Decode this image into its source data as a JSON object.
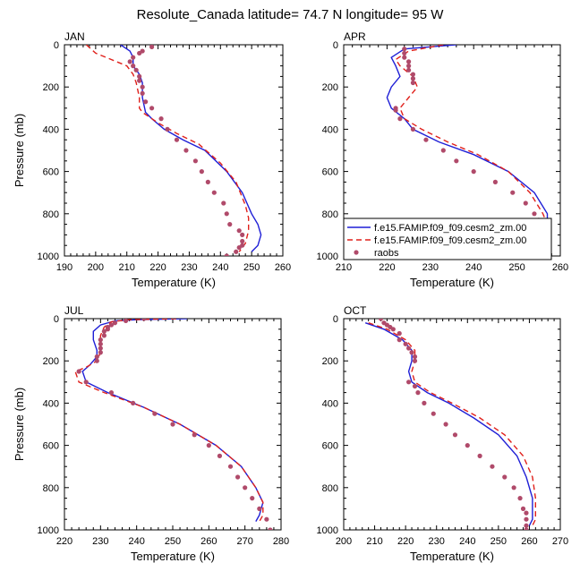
{
  "title": "Resolute_Canada  latitude= 74.7 N longitude= 95 W",
  "colors": {
    "model1": "#1f1fd6",
    "model2": "#e0201b",
    "raobs": "#b04a6a"
  },
  "chart_data": [
    {
      "type": "line",
      "panel_label": "JAN",
      "xlabel": "Temperature (K)",
      "ylabel": "Pressure (mb)",
      "xlim": [
        190,
        260
      ],
      "ylim": [
        0,
        1000
      ],
      "y_inverted": true,
      "xticks": [
        "190",
        "200",
        "210",
        "220",
        "230",
        "240",
        "250",
        "260"
      ],
      "yticks": [
        "0",
        "200",
        "400",
        "600",
        "800",
        "1000"
      ],
      "series": [
        {
          "name": "f.e15.FAMIP.f09_f09.cesm2_zm.00",
          "style": "solid",
          "x": [
            208,
            211,
            212,
            212,
            214,
            215,
            215,
            216,
            218,
            222,
            228,
            235,
            242,
            247,
            250,
            252,
            253,
            252,
            250
          ],
          "y": [
            0,
            30,
            60,
            100,
            140,
            180,
            250,
            320,
            350,
            400,
            450,
            500,
            600,
            700,
            800,
            850,
            900,
            950,
            980
          ]
        },
        {
          "name": "f.e15.FAMIP.f09_f09.cesm2_zm.00",
          "style": "dashed",
          "x": [
            197,
            200,
            205,
            210,
            212,
            213,
            214,
            214,
            215,
            220,
            226,
            233,
            240,
            245,
            248,
            249,
            249,
            248,
            246
          ],
          "y": [
            0,
            40,
            70,
            100,
            140,
            180,
            250,
            300,
            320,
            370,
            420,
            470,
            560,
            650,
            760,
            820,
            880,
            940,
            980
          ]
        },
        {
          "name": "raobs",
          "style": "markers",
          "x": [
            218,
            215,
            214,
            212,
            211,
            212,
            213,
            214,
            214,
            215,
            215,
            216,
            218,
            221,
            223,
            226,
            229,
            232,
            234,
            236,
            238,
            241,
            242,
            243,
            246,
            247,
            247,
            247,
            246,
            245,
            242
          ],
          "y": [
            10,
            30,
            40,
            60,
            80,
            100,
            120,
            150,
            170,
            200,
            230,
            270,
            300,
            350,
            400,
            450,
            500,
            550,
            600,
            650,
            700,
            750,
            800,
            850,
            880,
            900,
            930,
            950,
            960,
            980,
            1000
          ]
        }
      ]
    },
    {
      "type": "line",
      "panel_label": "APR",
      "xlabel": "Temperature (K)",
      "ylabel": "",
      "xlim": [
        210,
        260
      ],
      "ylim": [
        0,
        1000
      ],
      "y_inverted": true,
      "xticks": [
        "210",
        "220",
        "230",
        "240",
        "250",
        "260"
      ],
      "yticks": [
        "0",
        "200",
        "400",
        "600",
        "800",
        "1000"
      ],
      "legend": "bottom-right",
      "series": [
        {
          "name": "f.e15.FAMIP.f09_f09.cesm2_zm.00",
          "style": "solid",
          "x": [
            236,
            224,
            221,
            222,
            223,
            221,
            220,
            221,
            224,
            226,
            232,
            240,
            248,
            254,
            257,
            257,
            255,
            254
          ],
          "y": [
            0,
            20,
            60,
            100,
            150,
            200,
            250,
            300,
            350,
            400,
            460,
            520,
            600,
            700,
            800,
            850,
            900,
            1000
          ]
        },
        {
          "name": "f.e15.FAMIP.f09_f09.cesm2_zm.00",
          "style": "dashed",
          "x": [
            233,
            225,
            222,
            223,
            226,
            227,
            225,
            223,
            224,
            228,
            234,
            241,
            248,
            253,
            256,
            257,
            256,
            255
          ],
          "y": [
            0,
            30,
            70,
            100,
            150,
            200,
            250,
            300,
            350,
            400,
            460,
            520,
            600,
            700,
            800,
            850,
            900,
            1000
          ]
        },
        {
          "name": "raobs",
          "style": "markers",
          "x": [
            224,
            224,
            224,
            225,
            225,
            225,
            226,
            226,
            226,
            222,
            222,
            223,
            226,
            229,
            233,
            236,
            240,
            245,
            249,
            252,
            254,
            255,
            256,
            256,
            255,
            255,
            254,
            252,
            251
          ],
          "y": [
            20,
            40,
            60,
            80,
            100,
            120,
            140,
            160,
            180,
            300,
            310,
            350,
            400,
            450,
            500,
            550,
            600,
            650,
            700,
            750,
            800,
            830,
            860,
            880,
            900,
            920,
            940,
            960,
            1000
          ]
        }
      ]
    },
    {
      "type": "line",
      "panel_label": "JUL",
      "xlabel": "Temperature (K)",
      "ylabel": "Pressure (mb)",
      "xlim": [
        220,
        280
      ],
      "ylim": [
        0,
        1000
      ],
      "y_inverted": true,
      "xticks": [
        "220",
        "230",
        "240",
        "250",
        "260",
        "270",
        "280"
      ],
      "yticks": [
        "0",
        "200",
        "400",
        "600",
        "800",
        "1000"
      ],
      "series": [
        {
          "name": "f.e15.FAMIP.f09_f09.cesm2_zm.00",
          "style": "solid",
          "x": [
            254,
            240,
            234,
            230,
            228,
            228,
            229,
            229,
            227,
            225,
            226,
            232,
            242,
            252,
            262,
            269,
            273,
            275,
            274,
            273
          ],
          "y": [
            0,
            5,
            10,
            30,
            60,
            100,
            150,
            180,
            220,
            250,
            300,
            350,
            420,
            500,
            600,
            700,
            800,
            870,
            930,
            960
          ]
        },
        {
          "name": "f.e15.FAMIP.f09_f09.cesm2_zm.00",
          "style": "dashed",
          "x": [
            251,
            238,
            233,
            231,
            230,
            230,
            230,
            229,
            226,
            223,
            224,
            231,
            242,
            252,
            262,
            269,
            273,
            275,
            275,
            274
          ],
          "y": [
            0,
            5,
            15,
            40,
            80,
            120,
            160,
            200,
            230,
            250,
            300,
            350,
            420,
            500,
            600,
            700,
            800,
            870,
            930,
            960
          ]
        },
        {
          "name": "raobs",
          "style": "markers",
          "x": [
            242,
            237,
            234,
            233,
            232,
            232,
            231,
            231,
            230,
            230,
            230,
            230,
            229,
            229,
            224,
            226,
            233,
            239,
            245,
            250,
            256,
            260,
            263,
            266,
            268,
            270,
            272,
            274,
            276,
            277
          ],
          "y": [
            0,
            10,
            20,
            30,
            40,
            50,
            60,
            80,
            100,
            120,
            140,
            160,
            180,
            200,
            250,
            300,
            350,
            400,
            450,
            500,
            550,
            600,
            650,
            700,
            750,
            800,
            850,
            900,
            950,
            1000
          ]
        }
      ]
    },
    {
      "type": "line",
      "panel_label": "OCT",
      "xlabel": "Temperature (K)",
      "ylabel": "",
      "xlim": [
        200,
        270
      ],
      "ylim": [
        0,
        1000
      ],
      "y_inverted": true,
      "xticks": [
        "200",
        "210",
        "220",
        "230",
        "240",
        "250",
        "260",
        "270"
      ],
      "yticks": [
        "0",
        "200",
        "400",
        "600",
        "800",
        "1000"
      ],
      "series": [
        {
          "name": "f.e15.FAMIP.f09_f09.cesm2_zm.00",
          "style": "solid",
          "x": [
            207,
            213,
            219,
            222,
            222,
            221,
            222,
            227,
            234,
            242,
            250,
            256,
            259,
            261,
            261,
            260
          ],
          "y": [
            20,
            50,
            100,
            150,
            200,
            250,
            300,
            350,
            400,
            470,
            550,
            650,
            750,
            850,
            950,
            980
          ]
        },
        {
          "name": "f.e15.FAMIP.f09_f09.cesm2_zm.00",
          "style": "dashed",
          "x": [
            208,
            214,
            220,
            223,
            223,
            222,
            223,
            228,
            235,
            244,
            252,
            258,
            261,
            262,
            262,
            261
          ],
          "y": [
            20,
            50,
            100,
            150,
            200,
            250,
            300,
            350,
            400,
            470,
            550,
            650,
            750,
            850,
            950,
            980
          ]
        },
        {
          "name": "raobs",
          "style": "markers",
          "x": [
            212,
            213,
            214,
            215,
            216,
            218,
            218,
            220,
            221,
            222,
            223,
            223,
            221,
            223,
            224,
            226,
            229,
            233,
            236,
            240,
            244,
            248,
            252,
            255,
            257,
            258,
            259,
            259,
            259,
            259
          ],
          "y": [
            0,
            20,
            30,
            40,
            50,
            70,
            100,
            120,
            140,
            160,
            180,
            200,
            300,
            320,
            350,
            400,
            450,
            500,
            550,
            600,
            650,
            700,
            750,
            800,
            850,
            900,
            920,
            950,
            980,
            1000
          ]
        }
      ]
    }
  ]
}
